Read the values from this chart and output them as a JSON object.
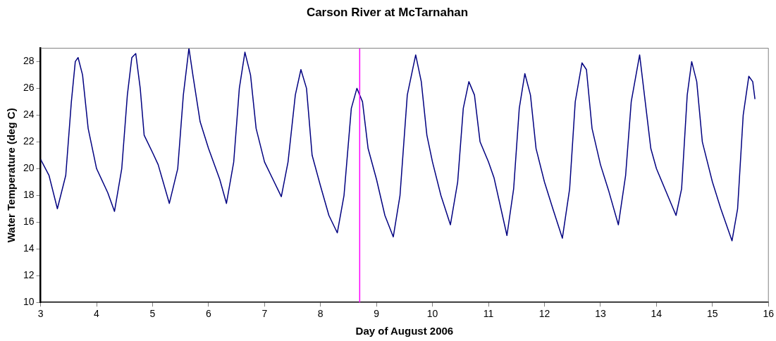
{
  "chart_data": {
    "type": "line",
    "title": "Carson River at McTarnahan",
    "xlabel": "Day of August 2006",
    "ylabel": "Water Temperature (deg C)",
    "xlim": [
      3,
      16
    ],
    "xticks": [
      3,
      4,
      5,
      6,
      7,
      8,
      9,
      10,
      11,
      12,
      13,
      14,
      15,
      16
    ],
    "ylim": [
      10,
      29
    ],
    "yticks": [
      10,
      12,
      14,
      16,
      18,
      20,
      22,
      24,
      26,
      28
    ],
    "grid": false,
    "legend": false,
    "marker": "none",
    "line_style": "solid",
    "ref_lines": [
      {
        "axis": "x",
        "value": 8.7,
        "color": "#ff00ff"
      }
    ],
    "series": [
      {
        "color": "#000080",
        "x": [
          3.0,
          3.15,
          3.3,
          3.45,
          3.55,
          3.62,
          3.67,
          3.75,
          3.85,
          4.0,
          4.2,
          4.32,
          4.45,
          4.55,
          4.63,
          4.7,
          4.78,
          4.85,
          5.0,
          5.1,
          5.3,
          5.45,
          5.55,
          5.65,
          5.72,
          5.85,
          6.0,
          6.2,
          6.32,
          6.45,
          6.55,
          6.65,
          6.75,
          6.85,
          7.0,
          7.15,
          7.3,
          7.42,
          7.55,
          7.65,
          7.75,
          7.85,
          8.0,
          8.15,
          8.3,
          8.42,
          8.55,
          8.65,
          8.75,
          8.85,
          9.0,
          9.15,
          9.3,
          9.42,
          9.55,
          9.7,
          9.8,
          9.9,
          10.0,
          10.15,
          10.32,
          10.45,
          10.55,
          10.65,
          10.75,
          10.85,
          11.0,
          11.1,
          11.33,
          11.45,
          11.55,
          11.65,
          11.75,
          11.85,
          12.0,
          12.15,
          12.32,
          12.45,
          12.55,
          12.67,
          12.75,
          12.85,
          13.0,
          13.15,
          13.32,
          13.45,
          13.55,
          13.7,
          13.8,
          13.9,
          14.0,
          14.2,
          14.35,
          14.45,
          14.55,
          14.63,
          14.72,
          14.82,
          15.0,
          15.15,
          15.35,
          15.45,
          15.55,
          15.65,
          15.72,
          15.76
        ],
        "values": [
          20.7,
          19.5,
          17.0,
          19.5,
          25,
          28.0,
          28.3,
          27,
          23,
          20,
          18.2,
          16.8,
          20,
          25.5,
          28.3,
          28.6,
          26,
          22.5,
          21.2,
          20.3,
          17.4,
          20,
          25.5,
          29.0,
          27,
          23.5,
          21.5,
          19.2,
          17.4,
          20.5,
          26,
          28.7,
          27,
          23,
          20.5,
          19.2,
          17.9,
          20.5,
          25.5,
          27.4,
          26,
          21,
          18.7,
          16.5,
          15.2,
          18,
          24.5,
          26.0,
          25,
          21.5,
          19.2,
          16.5,
          14.9,
          18,
          25.5,
          28.5,
          26.5,
          22.5,
          20.5,
          18,
          15.8,
          19,
          24.5,
          26.5,
          25.5,
          22,
          20.5,
          19.3,
          15.0,
          18.5,
          24.5,
          27.1,
          25.5,
          21.5,
          19,
          17,
          14.8,
          18.5,
          25,
          27.9,
          27.4,
          23,
          20.3,
          18.3,
          15.8,
          19.5,
          25,
          28.5,
          25,
          21.5,
          20,
          18,
          16.5,
          18.5,
          25.5,
          28.0,
          26.5,
          22,
          19,
          17,
          14.6,
          17,
          24,
          26.9,
          26.5,
          25.2
        ]
      }
    ]
  }
}
